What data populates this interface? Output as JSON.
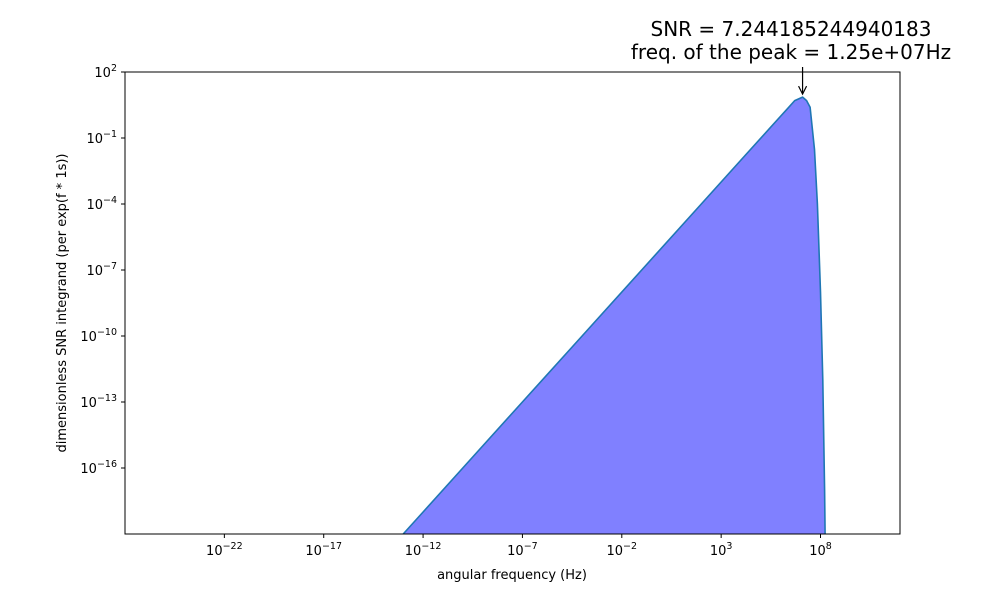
{
  "chart_data": {
    "type": "area",
    "title": [
      "SNR = 7.244185244940183",
      "freq. of the peak = 1.25e+07Hz"
    ],
    "xlabel": "angular frequency (Hz)",
    "ylabel": "dimensionless SNR integrand (per exp(f * 1s))",
    "xscale": "log",
    "yscale": "log",
    "xlim": [
      1e-27,
      1000000000000.0
    ],
    "ylim": [
      1e-19,
      100.0
    ],
    "grid": false,
    "xticks": [
      {
        "exp": -22,
        "label": "10^-22"
      },
      {
        "exp": -17,
        "label": "10^-17"
      },
      {
        "exp": -12,
        "label": "10^-12"
      },
      {
        "exp": -7,
        "label": "10^-7"
      },
      {
        "exp": -2,
        "label": "10^-2"
      },
      {
        "exp": 3,
        "label": "10^3"
      },
      {
        "exp": 8,
        "label": "10^8"
      }
    ],
    "yticks": [
      {
        "exp": 2,
        "label": "10^2"
      },
      {
        "exp": -1,
        "label": "10^-1"
      },
      {
        "exp": -4,
        "label": "10^-4"
      },
      {
        "exp": -7,
        "label": "10^-7"
      },
      {
        "exp": -10,
        "label": "10^-10"
      },
      {
        "exp": -13,
        "label": "10^-13"
      },
      {
        "exp": -16,
        "label": "10^-16"
      }
    ],
    "series": [
      {
        "x": [
          1e-13,
          1e-12,
          1e-10,
          1e-07,
          0.0001,
          0.1,
          100.0,
          10000.0,
          1000000.0,
          2000000.0,
          5000000.0,
          12500000.0,
          20000000.0,
          30000000.0,
          50000000.0,
          70000000.0,
          100000000.0,
          130000000.0,
          160000000.0,
          170000000.0
        ],
        "y": [
          1e-19,
          1e-18,
          1e-16,
          1e-13,
          1e-10,
          1e-07,
          0.0001,
          0.01,
          1,
          2,
          5,
          7.24,
          5,
          2.5,
          0.03,
          0.0001,
          1e-08,
          1e-12,
          1e-17,
          1e-19
        ]
      }
    ],
    "line_color": "#1f77b4",
    "fill_color": "#8080ff",
    "annotation": {
      "x": 12500000.0,
      "y": 7.24,
      "style": "arrow"
    }
  }
}
